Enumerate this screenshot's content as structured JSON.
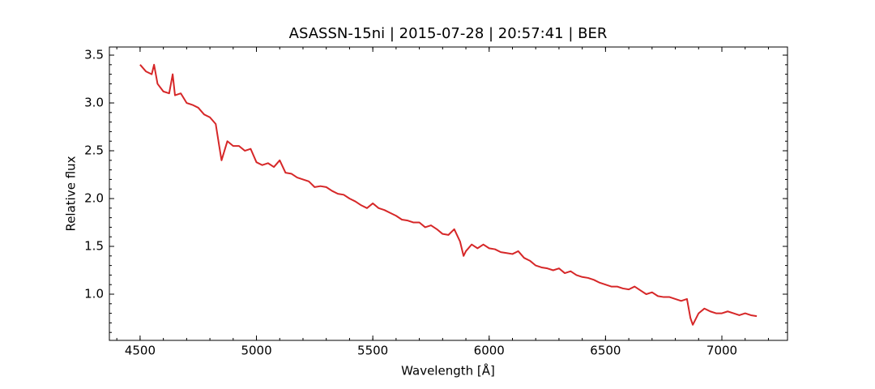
{
  "chart_data": {
    "type": "line",
    "title": "ASASSN-15ni | 2015-07-28 | 20:57:41 | BER",
    "x_label": "Wavelength [Å]",
    "y_label": "Relative flux",
    "x": [
      4500,
      4525,
      4550,
      4560,
      4575,
      4600,
      4625,
      4640,
      4650,
      4675,
      4700,
      4725,
      4750,
      4775,
      4800,
      4825,
      4840,
      4850,
      4875,
      4900,
      4925,
      4950,
      4975,
      5000,
      5025,
      5050,
      5075,
      5100,
      5125,
      5150,
      5175,
      5200,
      5225,
      5250,
      5275,
      5300,
      5325,
      5350,
      5375,
      5400,
      5425,
      5450,
      5475,
      5500,
      5525,
      5550,
      5575,
      5600,
      5625,
      5650,
      5675,
      5700,
      5725,
      5750,
      5775,
      5800,
      5825,
      5850,
      5875,
      5890,
      5900,
      5925,
      5950,
      5975,
      6000,
      6025,
      6050,
      6075,
      6100,
      6125,
      6150,
      6175,
      6200,
      6225,
      6250,
      6275,
      6300,
      6325,
      6350,
      6375,
      6400,
      6425,
      6450,
      6475,
      6500,
      6525,
      6550,
      6575,
      6600,
      6625,
      6650,
      6675,
      6700,
      6725,
      6750,
      6775,
      6800,
      6825,
      6850,
      6865,
      6875,
      6900,
      6925,
      6950,
      6975,
      7000,
      7025,
      7050,
      7075,
      7100,
      7125,
      7150
    ],
    "series": [
      {
        "name": "flux",
        "color": "#d62728",
        "values": [
          3.4,
          3.33,
          3.3,
          3.4,
          3.2,
          3.12,
          3.1,
          3.3,
          3.08,
          3.1,
          3.0,
          2.98,
          2.95,
          2.88,
          2.85,
          2.78,
          2.55,
          2.4,
          2.6,
          2.55,
          2.55,
          2.5,
          2.52,
          2.38,
          2.35,
          2.37,
          2.33,
          2.4,
          2.27,
          2.26,
          2.22,
          2.2,
          2.18,
          2.12,
          2.13,
          2.12,
          2.08,
          2.05,
          2.04,
          2.0,
          1.97,
          1.93,
          1.9,
          1.95,
          1.9,
          1.88,
          1.85,
          1.82,
          1.78,
          1.77,
          1.75,
          1.75,
          1.7,
          1.72,
          1.68,
          1.63,
          1.62,
          1.68,
          1.55,
          1.4,
          1.45,
          1.52,
          1.48,
          1.52,
          1.48,
          1.47,
          1.44,
          1.43,
          1.42,
          1.45,
          1.38,
          1.35,
          1.3,
          1.28,
          1.27,
          1.25,
          1.27,
          1.22,
          1.24,
          1.2,
          1.18,
          1.17,
          1.15,
          1.12,
          1.1,
          1.08,
          1.08,
          1.06,
          1.05,
          1.08,
          1.04,
          1.0,
          1.02,
          0.98,
          0.97,
          0.97,
          0.95,
          0.93,
          0.95,
          0.75,
          0.68,
          0.8,
          0.85,
          0.82,
          0.8,
          0.8,
          0.82,
          0.8,
          0.78,
          0.8,
          0.78,
          0.77
        ]
      }
    ],
    "xlim": [
      4368,
      7282
    ],
    "ylim": [
      0.517,
      3.585
    ],
    "xticks": [
      4500,
      5000,
      5500,
      6000,
      6500,
      7000
    ],
    "yticks": [
      {
        "value": 1,
        "label": "1.0"
      },
      1.5,
      {
        "value": 2,
        "label": "2.0"
      },
      2.5,
      {
        "value": 3,
        "label": "3.0"
      },
      3.5
    ],
    "xminorticks": [
      4400,
      4500,
      4600,
      4700,
      4800,
      4900,
      5000,
      5100,
      5200,
      5300,
      5400,
      5500,
      5600,
      5700,
      5800,
      5900,
      6000,
      6100,
      6200,
      6300,
      6400,
      6500,
      6600,
      6700,
      6800,
      6900,
      7000,
      7100,
      7200
    ],
    "yminorticks": [
      0.6,
      0.7,
      0.8,
      0.9,
      1.0,
      1.1,
      1.2,
      1.3,
      1.4,
      1.5,
      1.6,
      1.7,
      1.8,
      1.9,
      2.0,
      2.1,
      2.2,
      2.3,
      2.4,
      2.5,
      2.6,
      2.7,
      2.8,
      2.9,
      3.0,
      3.1,
      3.2,
      3.3,
      3.4,
      3.5
    ],
    "grid": false
  }
}
